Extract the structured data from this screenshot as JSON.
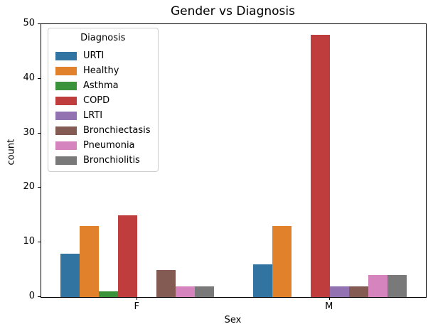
{
  "chart_data": {
    "type": "bar",
    "title": "Gender vs Diagnosis",
    "xlabel": "Sex",
    "ylabel": "count",
    "categories": [
      "F",
      "M"
    ],
    "legend": {
      "title": "Diagnosis",
      "position": "upper left"
    },
    "series": [
      {
        "name": "URTI",
        "color": "#3274a1",
        "values": [
          8,
          6
        ]
      },
      {
        "name": "Healthy",
        "color": "#e1812c",
        "values": [
          13,
          13
        ]
      },
      {
        "name": "Asthma",
        "color": "#3a923a",
        "values": [
          1,
          0
        ]
      },
      {
        "name": "COPD",
        "color": "#c03d3e",
        "values": [
          15,
          48
        ]
      },
      {
        "name": "LRTI",
        "color": "#9372b2",
        "values": [
          0,
          2
        ]
      },
      {
        "name": "Bronchiectasis",
        "color": "#845b53",
        "values": [
          5,
          2
        ]
      },
      {
        "name": "Pneumonia",
        "color": "#d684bd",
        "values": [
          2,
          4
        ]
      },
      {
        "name": "Bronchiolitis",
        "color": "#797979",
        "values": [
          2,
          4
        ]
      }
    ],
    "ylim": [
      0,
      50
    ],
    "yticks": [
      0,
      10,
      20,
      30,
      40,
      50
    ],
    "grid": false,
    "bar_group_width_fraction": 0.8
  }
}
